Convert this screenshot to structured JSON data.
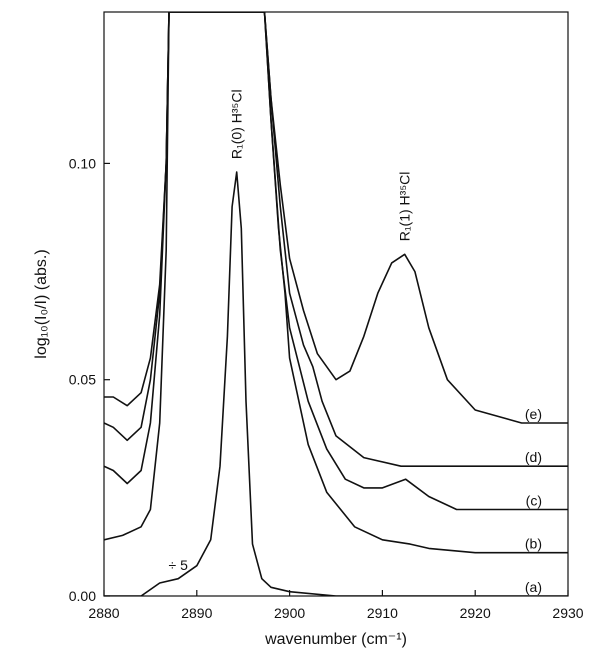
{
  "chart_data": {
    "type": "line",
    "xlabel": "wavenumber (cm⁻¹)",
    "ylabel": "log₁₀(I₀/I) (abs.)",
    "xlim": [
      2880,
      2930
    ],
    "ylim": [
      0.0,
      0.135
    ],
    "x_ticks": [
      2880,
      2890,
      2900,
      2910,
      2920,
      2930
    ],
    "x_tick_labels": [
      "2880",
      "2890",
      "2900",
      "2910",
      "2920",
      "2930"
    ],
    "y_ticks": [
      0.0,
      0.05,
      0.1
    ],
    "y_tick_labels": [
      "0.00",
      "0.05",
      "0.10"
    ],
    "grid": false,
    "annotations": [
      {
        "text": "R₁(0) H³⁵Cl",
        "x": 2894.3,
        "y": 0.101
      },
      {
        "text": "R₁(1) H³⁵Cl",
        "x": 2912.4,
        "y": 0.082
      },
      {
        "text": "÷ 5",
        "x": 2888.0,
        "y": 0.006
      }
    ],
    "series": [
      {
        "name": "(a)",
        "x": [
          2880,
          2884,
          2886,
          2888,
          2890,
          2891.5,
          2892.5,
          2893.3,
          2893.8,
          2894.3,
          2894.8,
          2895.3,
          2896,
          2897,
          2898,
          2900,
          2905,
          2930
        ],
        "y": [
          0.0,
          0.0,
          0.003,
          0.004,
          0.007,
          0.013,
          0.03,
          0.06,
          0.09,
          0.098,
          0.085,
          0.045,
          0.012,
          0.004,
          0.002,
          0.001,
          0.0,
          0.0
        ]
      },
      {
        "name": "(b)",
        "x": [
          2880,
          2882,
          2884,
          2885,
          2886,
          2886.7,
          2887,
          2897.3,
          2898,
          2898.8,
          2899.5,
          2900,
          2902,
          2904,
          2907,
          2910,
          2913,
          2915,
          2920,
          2930
        ],
        "y": [
          0.013,
          0.014,
          0.016,
          0.02,
          0.04,
          0.08,
          0.135,
          0.135,
          0.11,
          0.085,
          0.07,
          0.055,
          0.035,
          0.024,
          0.016,
          0.013,
          0.012,
          0.011,
          0.01,
          0.01
        ]
      },
      {
        "name": "(c)",
        "x": [
          2880,
          2881,
          2882.5,
          2884,
          2885,
          2886,
          2886.7,
          2887,
          2897.3,
          2898,
          2899,
          2900,
          2902,
          2904,
          2906,
          2908,
          2910,
          2912.5,
          2915,
          2918,
          2920,
          2930
        ],
        "y": [
          0.03,
          0.029,
          0.026,
          0.029,
          0.04,
          0.065,
          0.1,
          0.135,
          0.135,
          0.11,
          0.08,
          0.062,
          0.045,
          0.034,
          0.027,
          0.025,
          0.025,
          0.027,
          0.023,
          0.02,
          0.02,
          0.02
        ]
      },
      {
        "name": "(d)",
        "x": [
          2880,
          2881,
          2882.5,
          2884,
          2885,
          2886,
          2886.7,
          2887,
          2897.3,
          2898,
          2899,
          2900,
          2901.5,
          2902.5,
          2903.5,
          2905,
          2908,
          2912,
          2915,
          2920,
          2930
        ],
        "y": [
          0.04,
          0.039,
          0.036,
          0.039,
          0.05,
          0.07,
          0.1,
          0.135,
          0.135,
          0.115,
          0.09,
          0.07,
          0.058,
          0.053,
          0.045,
          0.037,
          0.032,
          0.03,
          0.03,
          0.03,
          0.03
        ]
      },
      {
        "name": "(e)",
        "x": [
          2880,
          2881,
          2882.5,
          2884,
          2885,
          2886,
          2886.7,
          2887,
          2897.3,
          2898,
          2899,
          2900,
          2901.5,
          2903,
          2905,
          2906.5,
          2908,
          2909.5,
          2911,
          2912.4,
          2913.5,
          2915,
          2917,
          2920,
          2925,
          2930
        ],
        "y": [
          0.046,
          0.046,
          0.044,
          0.047,
          0.055,
          0.072,
          0.1,
          0.135,
          0.135,
          0.115,
          0.095,
          0.078,
          0.066,
          0.056,
          0.05,
          0.052,
          0.06,
          0.07,
          0.077,
          0.079,
          0.075,
          0.062,
          0.05,
          0.043,
          0.04,
          0.04
        ]
      }
    ]
  }
}
